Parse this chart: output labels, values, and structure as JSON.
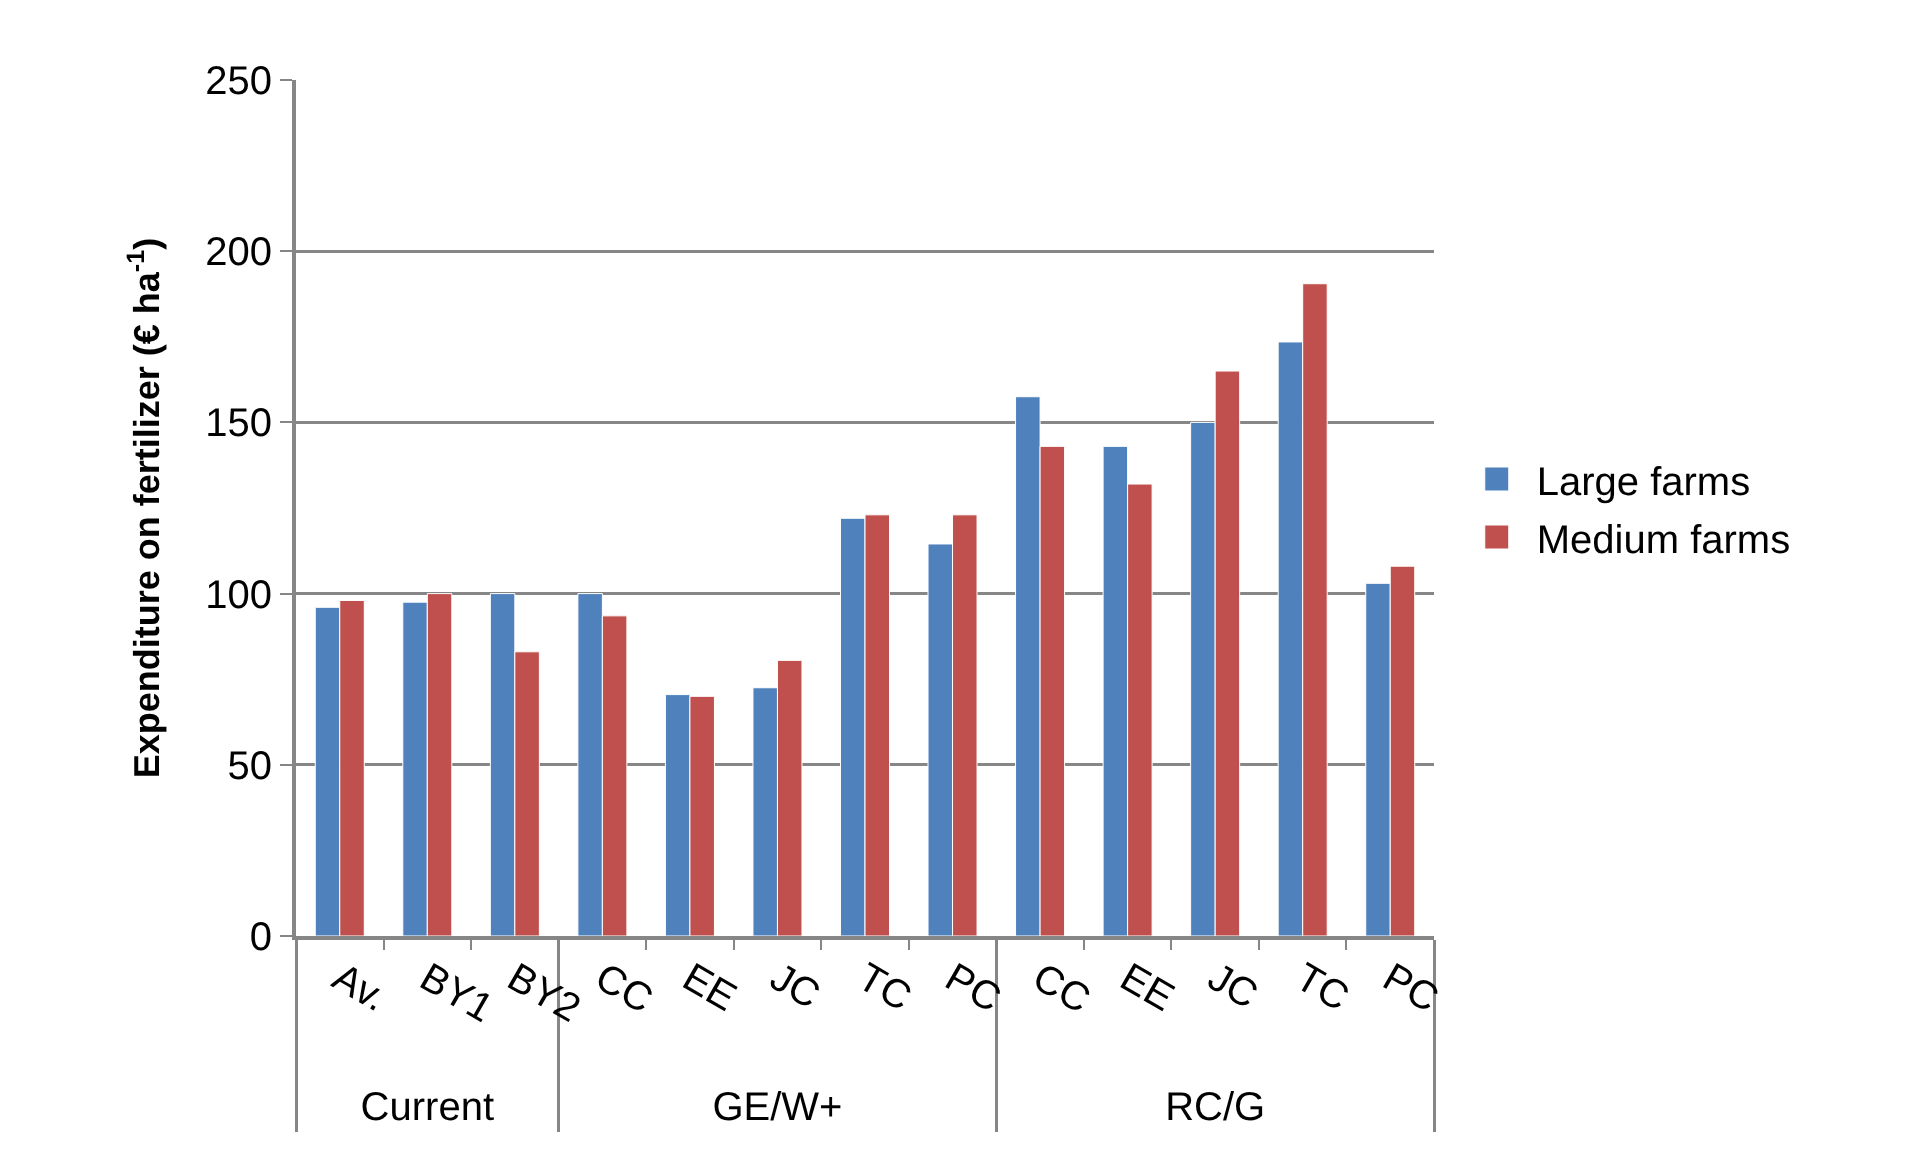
{
  "chart_data": {
    "type": "bar",
    "ylabel": "Expenditure on fertilizer (€ ha$^{-1}$)",
    "categories": [
      "Av.",
      "BY1",
      "BY2",
      "CC",
      "EE",
      "JC",
      "TC",
      "PC",
      "CC",
      "EE",
      "JC",
      "TC",
      "PC"
    ],
    "annotations": [
      "Current",
      "GE/W+",
      "RC/G"
    ],
    "series": [
      {
        "name": "Large farms",
        "color": "#4f81bd",
        "values": [
          96,
          97.5,
          100,
          100,
          70.5,
          72.5,
          122,
          114.5,
          157.5,
          143,
          150,
          173.5,
          103
        ]
      },
      {
        "name": "Medium farms",
        "color": "#c0504d",
        "values": [
          98,
          100,
          83,
          93.5,
          70,
          80.5,
          123,
          123,
          143,
          132,
          165,
          190.5,
          108
        ]
      }
    ],
    "ylim": [
      0,
      250
    ],
    "yticks": [
      0,
      50,
      100,
      150,
      200,
      250
    ],
    "grid": "y",
    "legend": "right"
  }
}
